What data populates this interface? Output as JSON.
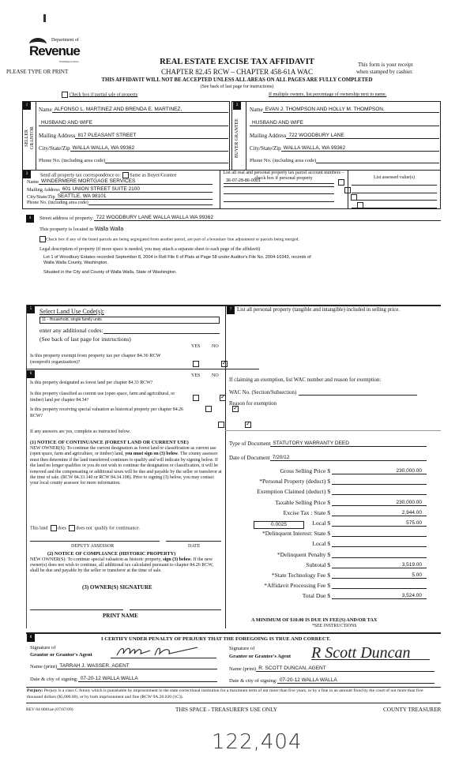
{
  "header": {
    "logo_top": "Department of",
    "logo_main": "Revenue",
    "logo_state": "Washington State",
    "please": "PLEASE TYPE OR PRINT",
    "title": "REAL ESTATE EXCISE TAX AFFIDAVIT",
    "subtitle": "CHAPTER 82.45 RCW – CHAPTER 458-61A WAC",
    "receipt_1": "This form is your receipt",
    "receipt_2": "when stamped by cashier.",
    "warning": "THIS AFFIDAVIT WILL NOT BE ACCEPTED UNLESS ALL AREAS ON ALL PAGES ARE FULLY COMPLETED",
    "see_back": "(See back of last page for instructions)",
    "partial_sale": "Check box if partial sale of property",
    "multiple_owners": "If multiple owners, list percentage of ownership next to name."
  },
  "seller": {
    "num": "1",
    "side": "SELLER GRANTOR",
    "name_label": "Name",
    "name": "ALFONSO L. MARTINEZ AND BRENDA E. MARTINEZ,",
    "name2": "HUSBAND AND WIFE",
    "addr_label": "Mailing Address",
    "addr": "817 PLEASANT STREET",
    "city_label": "City/State/Zip",
    "city": "WALLA WALLA, WA 99362",
    "phone_label": "Phone No. (including area code)"
  },
  "buyer": {
    "num": "2",
    "side": "BUYER GRANTEE",
    "name_label": "Name",
    "name": "EVAN J. THOMPSON AND HOLLY M. THOMPSON,",
    "name2": "HUSBAND AND WIFE",
    "addr_label": "Mailing Address",
    "addr": "722 WOODBURY LANE",
    "city_label": "City/State/Zip",
    "city": "WALLA WALLA, WA 99362",
    "phone_label": "Phone No. (including area code)"
  },
  "correspondence": {
    "num": "3",
    "label": "Send all property tax correspondence to:",
    "same": "Same as Buyer/Grantee",
    "name_label": "Name",
    "name": "WINDERMERE MORTGAGE SERVICES",
    "addr_label": "Mailing Address",
    "addr": "601 UNION STREET SUITE 2100",
    "city_label": "City/State/Zip",
    "city": "SEATTLE, WA 98101",
    "phone_label": "Phone No. (including area code)",
    "parcel_header": "List all real and personal property tax parcel account numbers – check box if personal property",
    "parcels": [
      "36-07-28-86-0001",
      "",
      "",
      ""
    ],
    "assessed_header": "List assessed value(s)"
  },
  "property": {
    "num": "4",
    "street_label": "Street address of property:",
    "street": "722 WOODBURY LANE WALLA WALLA WA 99362",
    "located_label": "This property is located in",
    "located": "Walla Walla",
    "segregated": "Check box if any of the listed parcels are being segregated from another parcel, are part of a boundary line adjustment or parcels being merged.",
    "legal_label": "Legal description of property (if more space is needed, you may attach a separate sheet to each page of the affidavit)",
    "legal_1": "Lot 1 of Woodbury Estates recorded September 8, 2004 in Roll File 6 of Plats at Page 58 under Auditor's File No. 2004-10343, records of",
    "legal_2": "Walla Walla County, Washington.",
    "legal_3": "Situated in the City and County of Walla Walla, State of Washington."
  },
  "land_use": {
    "num": "5",
    "label": "Select Land Use Code(s):",
    "code": "11 - Household, single family units",
    "additional": "enter any additional codes:",
    "see_back": "(See back of last page for instructions)",
    "yes": "YES",
    "no": "NO",
    "q_exempt": "Is this property exempt from property tax per chapter 84.36 RCW (nonprofit organization)?",
    "q_exempt_answer": "NO"
  },
  "section6": {
    "num": "6",
    "yes": "YES",
    "no": "NO",
    "questions": [
      {
        "text": "Is this property designated as forest land per chapter 84.33 RCW?",
        "answer": "NO"
      },
      {
        "text": "Is this property classified as current use (open space, farm and agricultural, or timber) land per chapter 84.34?",
        "answer": "NO"
      },
      {
        "text": "Is this property receiving special valuation as historical property per chapter 84.26 RCW?",
        "answer": "NO"
      }
    ],
    "if_yes": "If any answers are yes, complete as instructed below.",
    "n1_title": "(1) NOTICE OF CONTINUANCE (FOREST LAND OR CURRENT USE)",
    "n1_a": "NEW OWNER(S): To continue the current designation as forest land or classification as current use (open space, farm and agriculture, or timber) land, ",
    "n1_bold": "you must sign on (3) below",
    "n1_b": ". The county assessor must then determine if the land transferred continues to qualify and will indicate by signing below. If the land no longer qualifies or you do not wish to continue the designation or classification, it will be removed and the compensating or additional taxes will be due and payable by the seller or transferor at the time of sale. (RCW 84.33.140 or RCW 84.34.108). Prior to signing (3) below, you may contact your local county assessor for more information.",
    "this_land": "This land",
    "does": "does",
    "does_not": "does not",
    "qualify": "qualify for continuance.",
    "deputy": "DEPUTY ASSESSOR",
    "date": "DATE",
    "n2_title": "(2) NOTICE OF COMPLIANCE (HISTORIC PROPERTY)",
    "n2_a": "NEW OWNER(S): To continue special valuation as historic property, ",
    "n2_bold": "sign (3) below",
    "n2_b": ". If the new owner(s) does not wish to continue, all additional tax calculated pursuant to chapter 84.26 RCW, shall be due and payable by the seller or transferor at the time of sale.",
    "n3_title": "(3) OWNER(S) SIGNATURE",
    "print_name": "PRINT NAME"
  },
  "section7": {
    "num": "7",
    "label": "List all personal property (tangible and intangible) included in selling price.",
    "exemption": "If claiming an exemption, list WAC number and reason for exemption:",
    "wac_label": "WAC No. (Section/Subsection)",
    "reason_label": "Reason for exemption",
    "doc_type_label": "Type of Document",
    "doc_type": "STATUTORY WARRANTY DEED",
    "doc_date_label": "Date of Document",
    "doc_date": "7/20/12",
    "local_rate": "0.0025",
    "fees": [
      {
        "label": "Gross Selling Price $",
        "value": "230,000.00"
      },
      {
        "label": "*Personal Property (deduct) $",
        "value": ""
      },
      {
        "label": "Exemption Claimed (deduct) $",
        "value": ""
      },
      {
        "label": "Taxable Selling Price $",
        "value": "230,000.00"
      },
      {
        "label": "Excise Tax : State $",
        "value": "2,944.00"
      },
      {
        "label": "Local $",
        "value": "575.00"
      },
      {
        "label": "*Delinquent Interest: State $",
        "value": ""
      },
      {
        "label": "Local $",
        "value": ""
      },
      {
        "label": "*Delinquent Penalty $",
        "value": ""
      },
      {
        "label": "Subtotal $",
        "value": "3,519.00"
      },
      {
        "label": "*State Technology Fee $",
        "value": "5.00"
      },
      {
        "label": "*Affidavit Processing Fee $",
        "value": ""
      },
      {
        "label": "Total Due $",
        "value": "3,524.00"
      }
    ],
    "minimum": "A MINIMUM OF $10.00 IS DUE IN FEE(S) AND/OR TAX",
    "see_instr": "*SEE INSTRUCTIONS"
  },
  "section8": {
    "num": "8",
    "certify": "I CERTIFY UNDER PENALTY OF PERJURY THAT THE FOREGOING IS TRUE AND CORRECT.",
    "grantor_sig_1": "Signature of",
    "grantor_sig_2": "Grantor or Grantor's Agent",
    "grantee_sig_1": "Signature of",
    "grantee_sig_2": "Grantee or Grantee's Agent",
    "grantee_signature": "R Scott Duncan",
    "name_label": "Name (print)",
    "grantor_name": "TARRAH J. WASSER, AGENT",
    "grantee_name": "R. SCOTT DUNCAN, AGENT",
    "date_label": "Date & city of signing:",
    "grantor_date": "07-20-12 WALLA WALLA",
    "grantee_date": "07-20-12 WALLA WALLA"
  },
  "footer": {
    "perjury_bold": "Perjury:",
    "perjury": " Perjury is a class C felony which is punishable by imprisonment in the state correctional institution for a maximum term of not more than five years, or by a fine in an amount fixed by the court of not more than five thousand dollars ($5,000.00), or by both imprisonment and fine (RCW 9A.20.020 (1C)).",
    "rev": "REV 84 0001ae (07/07/09)",
    "treasurer_use": "THIS SPACE - TREASURER'S USE ONLY",
    "county": "COUNTY TREASURER",
    "handwritten": "122,404"
  }
}
